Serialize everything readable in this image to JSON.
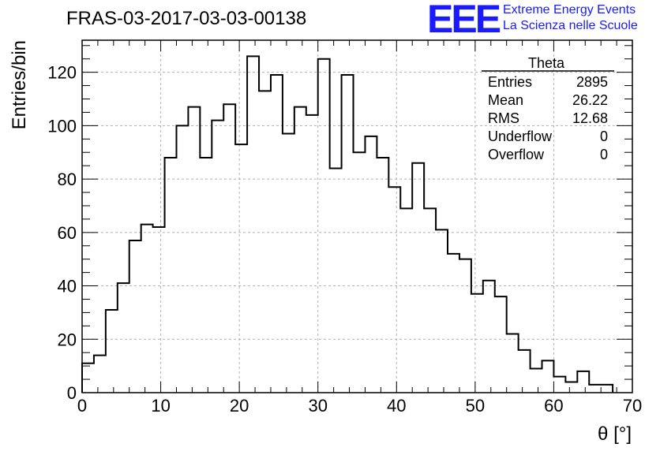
{
  "header": {
    "run_title": "FRAS-03-2017-03-03-00138",
    "logo_letters": "EEE",
    "logo_line1": "Extreme Energy Events",
    "logo_line2": "La Scienza nelle Scuole"
  },
  "colors": {
    "logo": "#1a1aff",
    "histogram": "#000000",
    "grid": "#b0b0b0"
  },
  "chart_data": {
    "type": "histogram",
    "xlabel": "θ [°]",
    "ylabel": "Entries/bin",
    "xlim": [
      0,
      70
    ],
    "ylim": [
      0,
      132
    ],
    "grid": true,
    "bin_width": 1.5,
    "bin_start": 0,
    "values": [
      11,
      14,
      31,
      41,
      57,
      63,
      62,
      88,
      100,
      107,
      88,
      102,
      108,
      93,
      126,
      113,
      119,
      97,
      107,
      104,
      125,
      84,
      119,
      90,
      96,
      88,
      77,
      69,
      86,
      69,
      61,
      52,
      50,
      37,
      42,
      36,
      22,
      16,
      9,
      12,
      6,
      4,
      8,
      3,
      3
    ],
    "x_ticks": [
      "0",
      "10",
      "20",
      "30",
      "40",
      "50",
      "60",
      "70"
    ],
    "y_ticks": [
      "0",
      "20",
      "40",
      "60",
      "80",
      "100",
      "120"
    ],
    "stats_box": {
      "title": "Theta",
      "rows": [
        {
          "label": "Entries",
          "value": "2895"
        },
        {
          "label": "Mean",
          "value": "26.22"
        },
        {
          "label": "RMS",
          "value": "12.68"
        },
        {
          "label": "Underflow",
          "value": "0"
        },
        {
          "label": "Overflow",
          "value": "0"
        }
      ]
    }
  }
}
